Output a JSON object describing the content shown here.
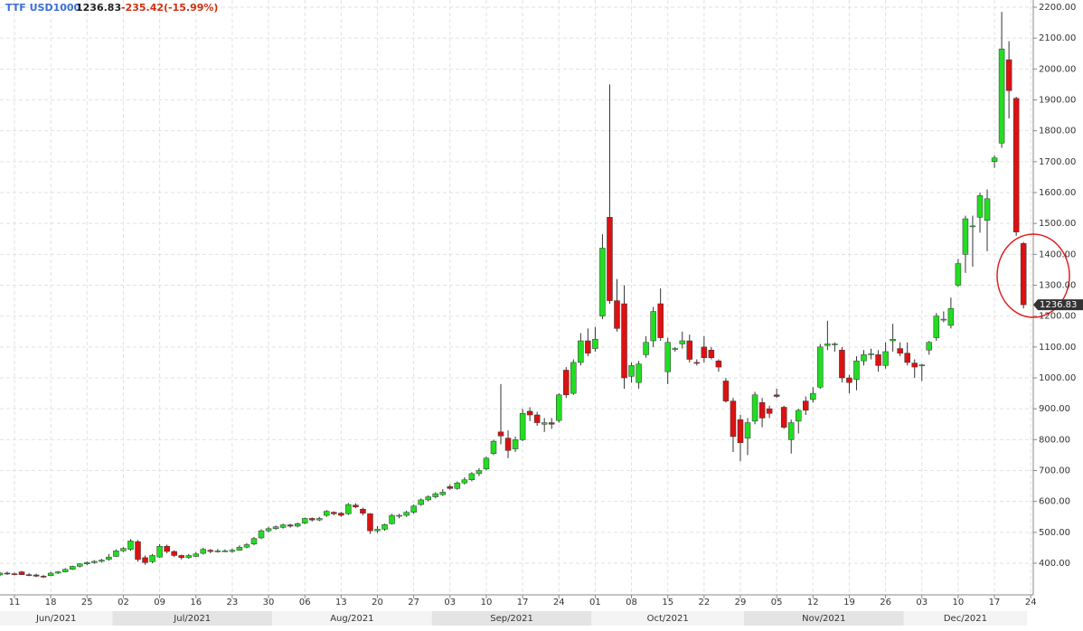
{
  "header": {
    "symbol": "TTF USD1000",
    "last": "1236.83",
    "change": "-235.42(-15.99%)"
  },
  "chart_data": {
    "type": "candlestick",
    "categories": [
      "2021-06-09",
      "2021-06-10",
      "2021-06-11",
      "2021-06-14",
      "2021-06-15",
      "2021-06-16",
      "2021-06-17",
      "2021-06-18",
      "2021-06-21",
      "2021-06-22",
      "2021-06-23",
      "2021-06-24",
      "2021-06-25",
      "2021-06-28",
      "2021-06-29",
      "2021-06-30",
      "2021-07-01",
      "2021-07-02",
      "2021-07-05",
      "2021-07-06",
      "2021-07-07",
      "2021-07-08",
      "2021-07-09",
      "2021-07-12",
      "2021-07-13",
      "2021-07-14",
      "2021-07-15",
      "2021-07-16",
      "2021-07-19",
      "2021-07-20",
      "2021-07-21",
      "2021-07-22",
      "2021-07-23",
      "2021-07-26",
      "2021-07-27",
      "2021-07-28",
      "2021-07-29",
      "2021-07-30",
      "2021-08-02",
      "2021-08-03",
      "2021-08-04",
      "2021-08-05",
      "2021-08-06",
      "2021-08-09",
      "2021-08-10",
      "2021-08-11",
      "2021-08-12",
      "2021-08-13",
      "2021-08-16",
      "2021-08-17",
      "2021-08-18",
      "2021-08-19",
      "2021-08-20",
      "2021-08-23",
      "2021-08-24",
      "2021-08-25",
      "2021-08-26",
      "2021-08-27",
      "2021-08-30",
      "2021-08-31",
      "2021-09-01",
      "2021-09-02",
      "2021-09-03",
      "2021-09-06",
      "2021-09-07",
      "2021-09-08",
      "2021-09-09",
      "2021-09-10",
      "2021-09-13",
      "2021-09-14",
      "2021-09-15",
      "2021-09-16",
      "2021-09-17",
      "2021-09-20",
      "2021-09-21",
      "2021-09-22",
      "2021-09-23",
      "2021-09-24",
      "2021-09-27",
      "2021-09-28",
      "2021-09-29",
      "2021-09-30",
      "2021-10-01",
      "2021-10-04",
      "2021-10-05",
      "2021-10-06",
      "2021-10-07",
      "2021-10-08",
      "2021-10-11",
      "2021-10-12",
      "2021-10-13",
      "2021-10-14",
      "2021-10-15",
      "2021-10-18",
      "2021-10-19",
      "2021-10-20",
      "2021-10-21",
      "2021-10-22",
      "2021-10-25",
      "2021-10-26",
      "2021-10-27",
      "2021-10-28",
      "2021-10-29",
      "2021-11-01",
      "2021-11-02",
      "2021-11-03",
      "2021-11-04",
      "2021-11-05",
      "2021-11-08",
      "2021-11-09",
      "2021-11-10",
      "2021-11-11",
      "2021-11-12",
      "2021-11-15",
      "2021-11-16",
      "2021-11-17",
      "2021-11-18",
      "2021-11-19",
      "2021-11-22",
      "2021-11-23",
      "2021-11-24",
      "2021-11-25",
      "2021-11-26",
      "2021-11-29",
      "2021-11-30",
      "2021-12-01",
      "2021-12-02",
      "2021-12-03",
      "2021-12-06",
      "2021-12-07",
      "2021-12-08",
      "2021-12-09",
      "2021-12-10",
      "2021-12-13",
      "2021-12-14",
      "2021-12-15",
      "2021-12-16",
      "2021-12-17",
      "2021-12-20",
      "2021-12-21",
      "2021-12-22",
      "2021-12-23"
    ],
    "ohlc": [
      [
        362,
        372,
        358,
        368
      ],
      [
        368,
        373,
        362,
        366
      ],
      [
        366,
        370,
        361,
        365
      ],
      [
        372,
        375,
        362,
        363
      ],
      [
        363,
        368,
        358,
        362
      ],
      [
        362,
        366,
        355,
        358
      ],
      [
        358,
        362,
        352,
        356
      ],
      [
        360,
        372,
        358,
        368
      ],
      [
        368,
        375,
        365,
        372
      ],
      [
        372,
        384,
        370,
        380
      ],
      [
        380,
        392,
        378,
        390
      ],
      [
        390,
        400,
        386,
        398
      ],
      [
        398,
        406,
        394,
        402
      ],
      [
        402,
        410,
        398,
        406
      ],
      [
        406,
        414,
        402,
        410
      ],
      [
        412,
        430,
        408,
        420
      ],
      [
        422,
        445,
        420,
        440
      ],
      [
        440,
        452,
        436,
        448
      ],
      [
        445,
        478,
        440,
        472
      ],
      [
        470,
        475,
        405,
        412
      ],
      [
        418,
        425,
        395,
        402
      ],
      [
        405,
        430,
        400,
        425
      ],
      [
        420,
        462,
        418,
        455
      ],
      [
        455,
        460,
        432,
        438
      ],
      [
        438,
        442,
        420,
        425
      ],
      [
        425,
        428,
        412,
        418
      ],
      [
        418,
        430,
        414,
        425
      ],
      [
        422,
        436,
        420,
        430
      ],
      [
        432,
        450,
        428,
        445
      ],
      [
        442,
        446,
        432,
        438
      ],
      [
        438,
        446,
        434,
        440
      ],
      [
        440,
        445,
        436,
        440
      ],
      [
        438,
        448,
        434,
        442
      ],
      [
        442,
        458,
        440,
        452
      ],
      [
        452,
        465,
        448,
        460
      ],
      [
        462,
        485,
        458,
        480
      ],
      [
        482,
        510,
        478,
        505
      ],
      [
        505,
        518,
        500,
        512
      ],
      [
        512,
        522,
        508,
        518
      ],
      [
        516,
        528,
        512,
        524
      ],
      [
        524,
        528,
        515,
        520
      ],
      [
        520,
        532,
        516,
        528
      ],
      [
        530,
        548,
        526,
        545
      ],
      [
        545,
        548,
        535,
        540
      ],
      [
        540,
        550,
        536,
        545
      ],
      [
        555,
        572,
        550,
        568
      ],
      [
        565,
        568,
        555,
        560
      ],
      [
        562,
        566,
        550,
        555
      ],
      [
        560,
        595,
        556,
        590
      ],
      [
        588,
        594,
        578,
        582
      ],
      [
        575,
        580,
        555,
        562
      ],
      [
        560,
        562,
        495,
        505
      ],
      [
        505,
        520,
        498,
        510
      ],
      [
        510,
        528,
        505,
        525
      ],
      [
        528,
        560,
        525,
        555
      ],
      [
        552,
        560,
        545,
        555
      ],
      [
        555,
        570,
        550,
        565
      ],
      [
        565,
        590,
        560,
        585
      ],
      [
        590,
        610,
        586,
        605
      ],
      [
        605,
        620,
        600,
        615
      ],
      [
        615,
        630,
        610,
        625
      ],
      [
        622,
        640,
        618,
        630
      ],
      [
        648,
        655,
        638,
        642
      ],
      [
        642,
        665,
        638,
        660
      ],
      [
        660,
        678,
        655,
        670
      ],
      [
        670,
        695,
        665,
        690
      ],
      [
        690,
        708,
        682,
        700
      ],
      [
        705,
        745,
        700,
        740
      ],
      [
        755,
        800,
        750,
        795
      ],
      [
        825,
        980,
        785,
        812
      ],
      [
        805,
        830,
        740,
        765
      ],
      [
        770,
        810,
        760,
        800
      ],
      [
        800,
        900,
        795,
        885
      ],
      [
        892,
        905,
        860,
        880
      ],
      [
        880,
        890,
        845,
        855
      ],
      [
        850,
        870,
        825,
        855
      ],
      [
        855,
        870,
        835,
        850
      ],
      [
        862,
        950,
        855,
        945
      ],
      [
        1025,
        1035,
        935,
        945
      ],
      [
        950,
        1060,
        945,
        1050
      ],
      [
        1050,
        1145,
        1040,
        1120
      ],
      [
        1120,
        1160,
        1070,
        1080
      ],
      [
        1095,
        1165,
        1085,
        1125
      ],
      [
        1200,
        1465,
        1190,
        1420
      ],
      [
        1520,
        1950,
        1240,
        1250
      ],
      [
        1250,
        1320,
        1150,
        1160
      ],
      [
        1240,
        1300,
        965,
        1000
      ],
      [
        1005,
        1050,
        985,
        1040
      ],
      [
        985,
        1055,
        965,
        1045
      ],
      [
        1075,
        1135,
        1065,
        1115
      ],
      [
        1120,
        1230,
        1100,
        1215
      ],
      [
        1240,
        1290,
        1120,
        1130
      ],
      [
        1020,
        1130,
        980,
        1115
      ],
      [
        1095,
        1100,
        1085,
        1095
      ],
      [
        1110,
        1150,
        1095,
        1120
      ],
      [
        1120,
        1140,
        1050,
        1060
      ],
      [
        1050,
        1060,
        1040,
        1048
      ],
      [
        1100,
        1135,
        1050,
        1065
      ],
      [
        1090,
        1100,
        1060,
        1065
      ],
      [
        1055,
        1060,
        1020,
        1035
      ],
      [
        990,
        1000,
        920,
        925
      ],
      [
        925,
        935,
        760,
        810
      ],
      [
        865,
        880,
        730,
        790
      ],
      [
        805,
        870,
        750,
        855
      ],
      [
        860,
        955,
        850,
        945
      ],
      [
        920,
        935,
        840,
        870
      ],
      [
        900,
        910,
        870,
        885
      ],
      [
        945,
        965,
        935,
        940
      ],
      [
        905,
        910,
        835,
        840
      ],
      [
        800,
        865,
        755,
        855
      ],
      [
        860,
        900,
        820,
        895
      ],
      [
        925,
        940,
        880,
        895
      ],
      [
        930,
        970,
        920,
        950
      ],
      [
        970,
        1110,
        965,
        1100
      ],
      [
        1105,
        1185,
        1090,
        1110
      ],
      [
        1108,
        1115,
        1085,
        1110
      ],
      [
        1090,
        1100,
        985,
        1000
      ],
      [
        1000,
        1010,
        950,
        985
      ],
      [
        995,
        1070,
        960,
        1055
      ],
      [
        1055,
        1090,
        1040,
        1075
      ],
      [
        1075,
        1095,
        1060,
        1078
      ],
      [
        1075,
        1090,
        1020,
        1040
      ],
      [
        1040,
        1115,
        1030,
        1085
      ],
      [
        1120,
        1175,
        1085,
        1125
      ],
      [
        1095,
        1115,
        1070,
        1080
      ],
      [
        1080,
        1115,
        1040,
        1050
      ],
      [
        1048,
        1060,
        1000,
        1035
      ],
      [
        1040,
        1045,
        990,
        1042
      ],
      [
        1090,
        1120,
        1075,
        1115
      ],
      [
        1130,
        1210,
        1120,
        1200
      ],
      [
        1190,
        1215,
        1180,
        1190
      ],
      [
        1170,
        1260,
        1160,
        1225
      ],
      [
        1300,
        1385,
        1295,
        1370
      ],
      [
        1400,
        1525,
        1340,
        1515
      ],
      [
        1490,
        1525,
        1360,
        1492
      ],
      [
        1520,
        1600,
        1470,
        1590
      ],
      [
        1510,
        1610,
        1410,
        1580
      ],
      [
        1700,
        1720,
        1680,
        1712
      ],
      [
        1760,
        2185,
        1745,
        2065
      ],
      [
        2030,
        2090,
        1840,
        1930
      ],
      [
        1905,
        1910,
        1460,
        1472.25
      ],
      [
        1435,
        1440,
        1225,
        1236.83
      ]
    ],
    "up_color": "#22dd22",
    "down_color": "#dd1111",
    "ylim": [
      297.6,
      2223.4
    ],
    "yticks": [
      {
        "value": 400,
        "label": "400.00"
      },
      {
        "value": 500,
        "label": "500.00"
      },
      {
        "value": 600,
        "label": "600.00"
      },
      {
        "value": 700,
        "label": "700.00"
      },
      {
        "value": 800,
        "label": "800.00"
      },
      {
        "value": 900,
        "label": "900.00"
      },
      {
        "value": 1000,
        "label": "1000.00"
      },
      {
        "value": 1100,
        "label": "1100.00"
      },
      {
        "value": 1200,
        "label": "1200.00"
      },
      {
        "value": 1300,
        "label": "1300.00"
      },
      {
        "value": 1400,
        "label": "1400.00"
      },
      {
        "value": 1500,
        "label": "1500.00"
      },
      {
        "value": 1600,
        "label": "1600.00"
      },
      {
        "value": 1700,
        "label": "1700.00"
      },
      {
        "value": 1800,
        "label": "1800.00"
      },
      {
        "value": 1900,
        "label": "1900.00"
      },
      {
        "value": 2000,
        "label": "2000.00"
      },
      {
        "value": 2100,
        "label": "2100.00"
      },
      {
        "value": 2200,
        "label": "2200.00"
      }
    ],
    "xticks": [
      {
        "value": "2021-06-11",
        "label": "11"
      },
      {
        "value": "2021-06-18",
        "label": "18"
      },
      {
        "value": "2021-06-25",
        "label": "25"
      },
      {
        "value": "2021-07-02",
        "label": "02"
      },
      {
        "value": "2021-07-09",
        "label": "09"
      },
      {
        "value": "2021-07-16",
        "label": "16"
      },
      {
        "value": "2021-07-23",
        "label": "23"
      },
      {
        "value": "2021-07-30",
        "label": "30"
      },
      {
        "value": "2021-08-06",
        "label": "06"
      },
      {
        "value": "2021-08-13",
        "label": "13"
      },
      {
        "value": "2021-08-20",
        "label": "20"
      },
      {
        "value": "2021-08-27",
        "label": "27"
      },
      {
        "value": "2021-09-03",
        "label": "03"
      },
      {
        "value": "2021-09-10",
        "label": "10"
      },
      {
        "value": "2021-09-17",
        "label": "17"
      },
      {
        "value": "2021-09-24",
        "label": "24"
      },
      {
        "value": "2021-10-01",
        "label": "01"
      },
      {
        "value": "2021-10-08",
        "label": "08"
      },
      {
        "value": "2021-10-15",
        "label": "15"
      },
      {
        "value": "2021-10-22",
        "label": "22"
      },
      {
        "value": "2021-10-29",
        "label": "29"
      },
      {
        "value": "2021-11-05",
        "label": "05"
      },
      {
        "value": "2021-11-12",
        "label": "12"
      },
      {
        "value": "2021-11-19",
        "label": "19"
      },
      {
        "value": "2021-11-26",
        "label": "26"
      },
      {
        "value": "2021-12-03",
        "label": "03"
      },
      {
        "value": "2021-12-10",
        "label": "10"
      },
      {
        "value": "2021-12-17",
        "label": "17"
      },
      {
        "value": "2021-12-24",
        "label": "24"
      }
    ],
    "months": [
      {
        "value": "2021-06",
        "label": "Jun/2021"
      },
      {
        "value": "2021-07",
        "label": "Jul/2021"
      },
      {
        "value": "2021-08",
        "label": "Aug/2021"
      },
      {
        "value": "2021-09",
        "label": "Sep/2021"
      },
      {
        "value": "2021-10",
        "label": "Oct/2021"
      },
      {
        "value": "2021-11",
        "label": "Nov/2021"
      },
      {
        "value": "2021-12",
        "label": "Dec/2021"
      }
    ],
    "grid": true
  }
}
